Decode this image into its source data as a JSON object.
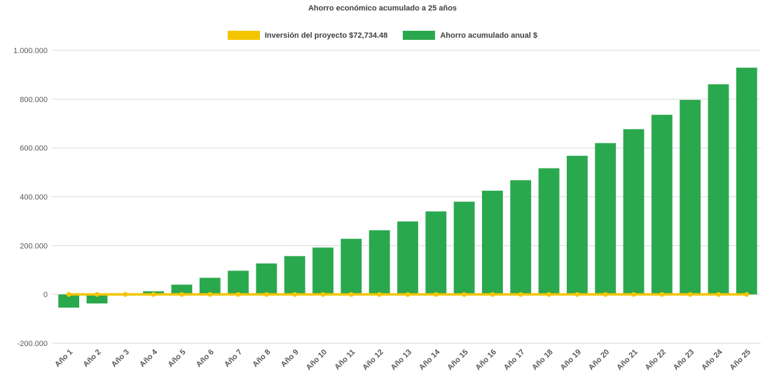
{
  "chart_data": {
    "type": "bar",
    "title": "Ahorro económico acumulado a 25 años",
    "categories": [
      "Año 1",
      "Año 2",
      "Año 3",
      "Año 4",
      "Año 5",
      "Año 6",
      "Año 7",
      "Año 8",
      "Año 9",
      "Año 10",
      "Año 11",
      "Año 12",
      "Año 13",
      "Año 14",
      "Año 15",
      "Año 16",
      "Año 17",
      "Año 18",
      "Año 19",
      "Año 20",
      "Año 21",
      "Año 22",
      "Año 23",
      "Año 24",
      "Año 25"
    ],
    "series": [
      {
        "name": "Inversión del proyecto $72,734.48",
        "type": "line",
        "color": "#f2c500",
        "value": 0
      },
      {
        "name": "Ahorro acumulado anual $",
        "type": "bar",
        "color": "#2aa84e",
        "values": [
          -54000,
          -37000,
          3000,
          13000,
          40000,
          68000,
          97000,
          127000,
          157000,
          192000,
          228000,
          263000,
          299000,
          340000,
          380000,
          425000,
          468000,
          517000,
          568000,
          620000,
          677000,
          736000,
          797000,
          861000,
          929000
        ]
      }
    ],
    "y_axis": {
      "min": -200000,
      "max": 1000000,
      "tick_step": 200000,
      "tick_values": [
        1000000,
        800000,
        600000,
        400000,
        200000,
        0,
        -200000
      ],
      "tick_labels": [
        "1.000.000",
        "800.000",
        "600.000",
        "400.000",
        "200.000",
        "0",
        "-200.000"
      ]
    },
    "grid": true,
    "legend_position": "top",
    "xlabel": "",
    "ylabel": ""
  }
}
